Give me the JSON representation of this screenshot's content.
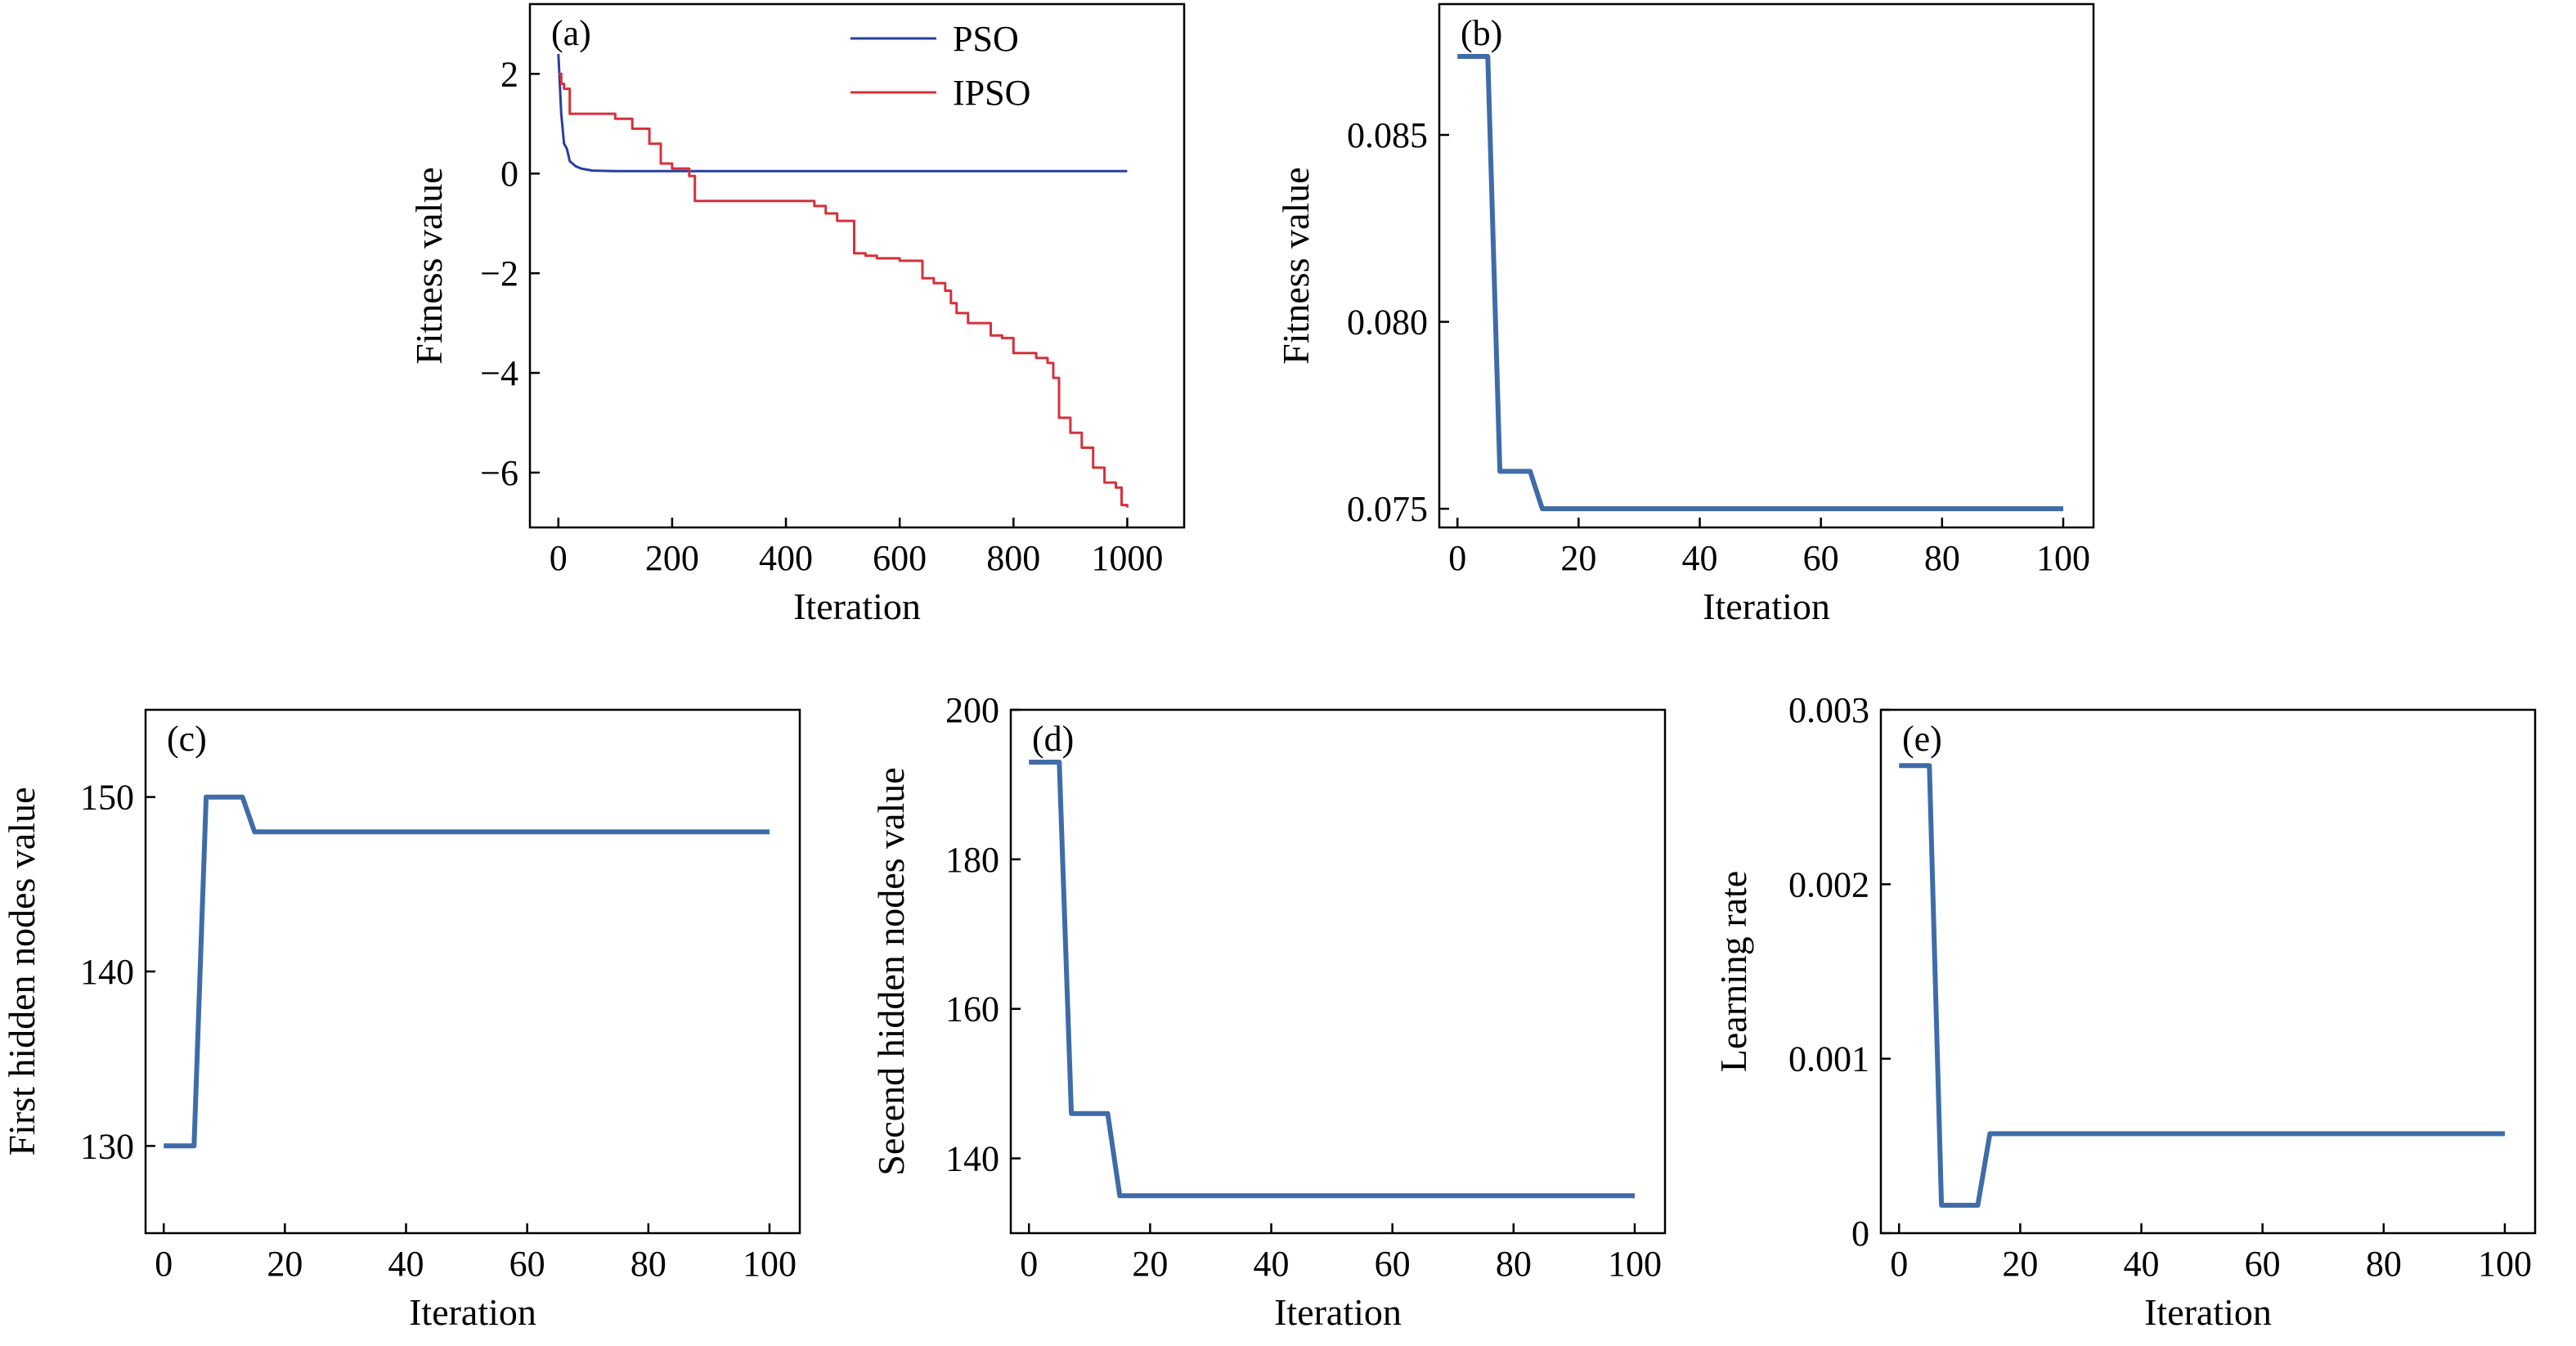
{
  "colors": {
    "pso": "#2a3f9e",
    "ipso": "#d6303b",
    "single": "#3f6ca8"
  },
  "chart_data": [
    {
      "panel": "(a)",
      "type": "line",
      "xlabel": "Iteration",
      "ylabel": "Fitness value",
      "xlim": [
        -50,
        1100
      ],
      "ylim": [
        -7.1,
        3.4
      ],
      "xticks": [
        0,
        200,
        400,
        600,
        800,
        1000
      ],
      "xtick_labels": [
        "0",
        "200",
        "400",
        "600",
        "800",
        "1000"
      ],
      "yticks": [
        2,
        0,
        -2,
        -4,
        -6
      ],
      "ytick_labels": [
        "2",
        "0",
        "−2",
        "−4",
        "−6"
      ],
      "legend": "top-right",
      "series": [
        {
          "name": "PSO",
          "color": "#2a3f9e",
          "width": 3,
          "x": [
            0,
            5,
            10,
            15,
            20,
            30,
            40,
            60,
            100,
            1000
          ],
          "y": [
            2.4,
            1.2,
            0.6,
            0.5,
            0.25,
            0.15,
            0.1,
            0.06,
            0.05,
            0.05
          ]
        },
        {
          "name": "IPSO",
          "color": "#d6303b",
          "width": 3,
          "step": true,
          "x": [
            0,
            5,
            10,
            20,
            100,
            130,
            160,
            180,
            200,
            230,
            240,
            440,
            450,
            470,
            490,
            520,
            540,
            560,
            600,
            640,
            660,
            680,
            690,
            700,
            720,
            760,
            780,
            800,
            840,
            860,
            870,
            880,
            900,
            920,
            940,
            960,
            980,
            990,
            1000
          ],
          "y": [
            2.0,
            1.8,
            1.7,
            1.2,
            1.1,
            0.9,
            0.6,
            0.2,
            0.1,
            -0.05,
            -0.55,
            -0.55,
            -0.65,
            -0.8,
            -0.95,
            -1.6,
            -1.65,
            -1.7,
            -1.75,
            -2.1,
            -2.2,
            -2.35,
            -2.6,
            -2.8,
            -3.0,
            -3.25,
            -3.3,
            -3.6,
            -3.7,
            -3.8,
            -4.1,
            -4.9,
            -5.2,
            -5.5,
            -5.9,
            -6.2,
            -6.3,
            -6.65,
            -6.7
          ]
        }
      ]
    },
    {
      "panel": "(b)",
      "type": "line",
      "xlabel": "Iteration",
      "ylabel": "Fitness value",
      "xlim": [
        -3,
        105
      ],
      "ylim": [
        0.0745,
        0.0885
      ],
      "xticks": [
        0,
        20,
        40,
        60,
        80,
        100
      ],
      "xtick_labels": [
        "0",
        "20",
        "40",
        "60",
        "80",
        "100"
      ],
      "yticks": [
        0.075,
        0.08,
        0.085
      ],
      "ytick_labels": [
        "0.075",
        "0.080",
        "0.085"
      ],
      "series": [
        {
          "color": "#3f6ca8",
          "width": 6,
          "x": [
            0,
            5,
            7,
            12,
            14,
            100
          ],
          "y": [
            0.0871,
            0.0871,
            0.076,
            0.076,
            0.075,
            0.075
          ]
        }
      ]
    },
    {
      "panel": "(c)",
      "type": "line",
      "xlabel": "Iteration",
      "ylabel": "First hidden nodes value",
      "xlim": [
        -3,
        105
      ],
      "ylim": [
        125,
        155
      ],
      "xticks": [
        0,
        20,
        40,
        60,
        80,
        100
      ],
      "xtick_labels": [
        "0",
        "20",
        "40",
        "60",
        "80",
        "100"
      ],
      "yticks": [
        130,
        140,
        150
      ],
      "ytick_labels": [
        "130",
        "140",
        "150"
      ],
      "series": [
        {
          "color": "#3f6ca8",
          "width": 6,
          "x": [
            0,
            5,
            7,
            13,
            15,
            100
          ],
          "y": [
            130,
            130,
            150,
            150,
            148,
            148
          ]
        }
      ]
    },
    {
      "panel": "(d)",
      "type": "line",
      "xlabel": "Iteration",
      "ylabel": "Secend hidden nodes value",
      "xlim": [
        -3,
        105
      ],
      "ylim": [
        130,
        200
      ],
      "xticks": [
        0,
        20,
        40,
        60,
        80,
        100
      ],
      "xtick_labels": [
        "0",
        "20",
        "40",
        "60",
        "80",
        "100"
      ],
      "yticks": [
        140,
        160,
        180,
        200
      ],
      "ytick_labels": [
        "140",
        "160",
        "180",
        "200"
      ],
      "series": [
        {
          "color": "#3f6ca8",
          "width": 6,
          "x": [
            0,
            5,
            7,
            13,
            15,
            100
          ],
          "y": [
            193,
            193,
            146,
            146,
            135,
            135
          ]
        }
      ]
    },
    {
      "panel": "(e)",
      "type": "line",
      "xlabel": "Iteration",
      "ylabel": "Learning rate",
      "xlim": [
        -3,
        105
      ],
      "ylim": [
        0,
        0.003
      ],
      "xticks": [
        0,
        20,
        40,
        60,
        80,
        100
      ],
      "xtick_labels": [
        "0",
        "20",
        "40",
        "60",
        "80",
        "100"
      ],
      "yticks": [
        0,
        0.001,
        0.002,
        0.003
      ],
      "ytick_labels": [
        "0",
        "0.001",
        "0.002",
        "0.003"
      ],
      "series": [
        {
          "color": "#3f6ca8",
          "width": 6,
          "x": [
            0,
            5,
            7,
            13,
            15,
            100
          ],
          "y": [
            0.00268,
            0.00268,
            0.00016,
            0.00016,
            0.00057,
            0.00057
          ]
        }
      ]
    }
  ]
}
